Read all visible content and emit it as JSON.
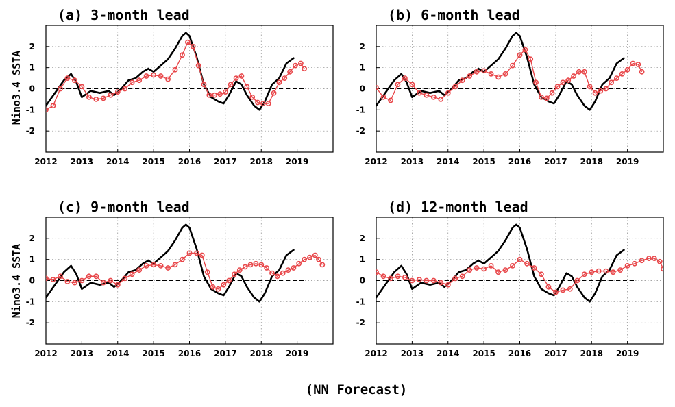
{
  "footer": "(NN Forecast)",
  "colors": {
    "observed": "#000000",
    "forecast": "#e8474a",
    "grid": "#888888"
  },
  "chart_data": [
    {
      "type": "line",
      "title": "(a) 3-month lead",
      "ylabel": "Nino3.4 SSTA",
      "xlim": [
        2012,
        2020
      ],
      "ylim": [
        -3,
        3
      ],
      "xticks": [
        "2012",
        "2013",
        "2014",
        "2015",
        "2016",
        "2017",
        "2018",
        "2019"
      ],
      "yticks": [
        "-2",
        "-1",
        "0",
        "1",
        "2"
      ],
      "grid": true,
      "series": [
        {
          "style": "solid",
          "x": [
            2012.0,
            2012.25,
            2012.5,
            2012.7,
            2012.85,
            2013.0,
            2013.25,
            2013.5,
            2013.75,
            2013.9,
            2014.1,
            2014.3,
            2014.5,
            2014.7,
            2014.85,
            2015.0,
            2015.2,
            2015.4,
            2015.6,
            2015.8,
            2015.9,
            2016.0,
            2016.2,
            2016.4,
            2016.6,
            2016.8,
            2016.95,
            2017.1,
            2017.3,
            2017.45,
            2017.6,
            2017.8,
            2017.95,
            2018.1,
            2018.3,
            2018.5,
            2018.7,
            2018.9
          ],
          "y": [
            -0.8,
            -0.2,
            0.4,
            0.7,
            0.3,
            -0.4,
            -0.1,
            -0.2,
            -0.1,
            -0.3,
            0.0,
            0.4,
            0.5,
            0.8,
            0.95,
            0.8,
            1.1,
            1.4,
            1.9,
            2.5,
            2.65,
            2.5,
            1.5,
            0.2,
            -0.4,
            -0.6,
            -0.7,
            -0.3,
            0.35,
            0.2,
            -0.3,
            -0.8,
            -1.0,
            -0.6,
            0.2,
            0.5,
            1.2,
            1.45
          ]
        },
        {
          "style": "markers",
          "x": [
            2012.0,
            2012.2,
            2012.4,
            2012.6,
            2012.8,
            2013.0,
            2013.2,
            2013.4,
            2013.6,
            2013.8,
            2014.0,
            2014.2,
            2014.4,
            2014.6,
            2014.8,
            2015.0,
            2015.2,
            2015.4,
            2015.6,
            2015.8,
            2015.95,
            2016.1,
            2016.25,
            2016.4,
            2016.55,
            2016.7,
            2016.85,
            2017.0,
            2017.15,
            2017.3,
            2017.45,
            2017.6,
            2017.75,
            2017.9,
            2018.05,
            2018.2,
            2018.35,
            2018.5,
            2018.65,
            2018.8,
            2018.95,
            2019.1,
            2019.2
          ],
          "y": [
            -1.0,
            -0.8,
            0.0,
            0.5,
            0.4,
            0.1,
            -0.4,
            -0.5,
            -0.45,
            -0.3,
            -0.15,
            0.0,
            0.3,
            0.4,
            0.6,
            0.65,
            0.6,
            0.45,
            0.9,
            1.6,
            2.2,
            2.0,
            1.1,
            0.2,
            -0.3,
            -0.3,
            -0.25,
            -0.15,
            0.2,
            0.5,
            0.6,
            0.1,
            -0.4,
            -0.65,
            -0.7,
            -0.7,
            -0.2,
            0.3,
            0.5,
            0.8,
            1.1,
            1.2,
            0.95
          ]
        }
      ]
    },
    {
      "type": "line",
      "title": "(b) 6-month lead",
      "ylabel": "",
      "xlim": [
        2012,
        2020
      ],
      "ylim": [
        -3,
        3
      ],
      "xticks": [
        "2012",
        "2013",
        "2014",
        "2015",
        "2016",
        "2017",
        "2018",
        "2019"
      ],
      "yticks": [
        "-2",
        "-1",
        "0",
        "1",
        "2"
      ],
      "grid": true,
      "series": [
        {
          "style": "solid",
          "x": [
            2012.0,
            2012.25,
            2012.5,
            2012.7,
            2012.85,
            2013.0,
            2013.25,
            2013.5,
            2013.75,
            2013.9,
            2014.1,
            2014.3,
            2014.5,
            2014.7,
            2014.85,
            2015.0,
            2015.2,
            2015.4,
            2015.6,
            2015.8,
            2015.9,
            2016.0,
            2016.2,
            2016.4,
            2016.6,
            2016.8,
            2016.95,
            2017.1,
            2017.3,
            2017.45,
            2017.6,
            2017.8,
            2017.95,
            2018.1,
            2018.3,
            2018.5,
            2018.7,
            2018.9
          ],
          "y": [
            -0.8,
            -0.2,
            0.4,
            0.7,
            0.3,
            -0.4,
            -0.1,
            -0.2,
            -0.1,
            -0.3,
            0.0,
            0.4,
            0.5,
            0.8,
            0.95,
            0.8,
            1.1,
            1.4,
            1.9,
            2.5,
            2.65,
            2.5,
            1.5,
            0.2,
            -0.4,
            -0.6,
            -0.7,
            -0.3,
            0.35,
            0.2,
            -0.3,
            -0.8,
            -1.0,
            -0.6,
            0.2,
            0.5,
            1.2,
            1.45
          ]
        },
        {
          "style": "markers",
          "x": [
            2012.0,
            2012.2,
            2012.4,
            2012.6,
            2012.8,
            2013.0,
            2013.2,
            2013.4,
            2013.6,
            2013.8,
            2014.0,
            2014.2,
            2014.4,
            2014.6,
            2014.8,
            2015.0,
            2015.2,
            2015.4,
            2015.6,
            2015.8,
            2016.0,
            2016.15,
            2016.3,
            2016.45,
            2016.6,
            2016.75,
            2016.9,
            2017.05,
            2017.2,
            2017.35,
            2017.5,
            2017.65,
            2017.8,
            2017.95,
            2018.1,
            2018.25,
            2018.4,
            2018.55,
            2018.7,
            2018.85,
            2019.0,
            2019.15,
            2019.3,
            2019.4
          ],
          "y": [
            0.05,
            -0.4,
            -0.55,
            0.2,
            0.5,
            0.2,
            -0.2,
            -0.3,
            -0.4,
            -0.5,
            -0.2,
            0.1,
            0.4,
            0.6,
            0.8,
            0.85,
            0.7,
            0.55,
            0.7,
            1.1,
            1.6,
            1.85,
            1.4,
            0.3,
            -0.4,
            -0.45,
            -0.2,
            0.1,
            0.3,
            0.4,
            0.6,
            0.8,
            0.8,
            0.1,
            -0.2,
            -0.1,
            0.0,
            0.3,
            0.5,
            0.7,
            0.9,
            1.2,
            1.15,
            0.8
          ]
        }
      ]
    },
    {
      "type": "line",
      "title": "(c) 9-month lead",
      "ylabel": "Nino3.4 SSTA",
      "xlim": [
        2012,
        2020
      ],
      "ylim": [
        -3,
        3
      ],
      "xticks": [
        "2012",
        "2013",
        "2014",
        "2015",
        "2016",
        "2017",
        "2018",
        "2019"
      ],
      "yticks": [
        "-2",
        "-1",
        "0",
        "1",
        "2"
      ],
      "grid": true,
      "series": [
        {
          "style": "solid",
          "x": [
            2012.0,
            2012.25,
            2012.5,
            2012.7,
            2012.85,
            2013.0,
            2013.25,
            2013.5,
            2013.75,
            2013.9,
            2014.1,
            2014.3,
            2014.5,
            2014.7,
            2014.85,
            2015.0,
            2015.2,
            2015.4,
            2015.6,
            2015.8,
            2015.9,
            2016.0,
            2016.2,
            2016.4,
            2016.6,
            2016.8,
            2016.95,
            2017.1,
            2017.3,
            2017.45,
            2017.6,
            2017.8,
            2017.95,
            2018.1,
            2018.3,
            2018.5,
            2018.7,
            2018.9
          ],
          "y": [
            -0.8,
            -0.2,
            0.4,
            0.7,
            0.3,
            -0.4,
            -0.1,
            -0.2,
            -0.1,
            -0.3,
            0.0,
            0.4,
            0.5,
            0.8,
            0.95,
            0.8,
            1.1,
            1.4,
            1.9,
            2.5,
            2.65,
            2.5,
            1.5,
            0.2,
            -0.4,
            -0.6,
            -0.7,
            -0.3,
            0.35,
            0.2,
            -0.3,
            -0.8,
            -1.0,
            -0.6,
            0.2,
            0.5,
            1.2,
            1.45
          ]
        },
        {
          "style": "markers",
          "x": [
            2012.0,
            2012.2,
            2012.4,
            2012.6,
            2012.8,
            2013.0,
            2013.2,
            2013.4,
            2013.6,
            2013.8,
            2014.0,
            2014.2,
            2014.4,
            2014.6,
            2014.8,
            2015.0,
            2015.2,
            2015.4,
            2015.6,
            2015.8,
            2016.0,
            2016.2,
            2016.35,
            2016.5,
            2016.65,
            2016.8,
            2016.95,
            2017.1,
            2017.25,
            2017.4,
            2017.55,
            2017.7,
            2017.85,
            2018.0,
            2018.15,
            2018.3,
            2018.45,
            2018.6,
            2018.75,
            2018.9,
            2019.05,
            2019.2,
            2019.35,
            2019.5,
            2019.6,
            2019.7
          ],
          "y": [
            0.1,
            0.05,
            0.2,
            -0.05,
            -0.1,
            0.0,
            0.2,
            0.2,
            -0.1,
            0.0,
            -0.2,
            0.1,
            0.3,
            0.5,
            0.7,
            0.75,
            0.7,
            0.6,
            0.75,
            1.0,
            1.3,
            1.3,
            1.2,
            0.4,
            -0.3,
            -0.4,
            -0.2,
            0.0,
            0.3,
            0.5,
            0.65,
            0.75,
            0.8,
            0.75,
            0.6,
            0.35,
            0.2,
            0.35,
            0.5,
            0.6,
            0.8,
            1.0,
            1.1,
            1.2,
            1.0,
            0.75
          ]
        }
      ]
    },
    {
      "type": "line",
      "title": "(d) 12-month lead",
      "ylabel": "",
      "xlim": [
        2012,
        2020
      ],
      "ylim": [
        -3,
        3
      ],
      "xticks": [
        "2012",
        "2013",
        "2014",
        "2015",
        "2016",
        "2017",
        "2018",
        "2019"
      ],
      "yticks": [
        "-2",
        "-1",
        "0",
        "1",
        "2"
      ],
      "grid": true,
      "series": [
        {
          "style": "solid",
          "x": [
            2012.0,
            2012.25,
            2012.5,
            2012.7,
            2012.85,
            2013.0,
            2013.25,
            2013.5,
            2013.75,
            2013.9,
            2014.1,
            2014.3,
            2014.5,
            2014.7,
            2014.85,
            2015.0,
            2015.2,
            2015.4,
            2015.6,
            2015.8,
            2015.9,
            2016.0,
            2016.2,
            2016.4,
            2016.6,
            2016.8,
            2016.95,
            2017.1,
            2017.3,
            2017.45,
            2017.6,
            2017.8,
            2017.95,
            2018.1,
            2018.3,
            2018.5,
            2018.7,
            2018.9
          ],
          "y": [
            -0.8,
            -0.2,
            0.4,
            0.7,
            0.3,
            -0.4,
            -0.1,
            -0.2,
            -0.1,
            -0.3,
            0.0,
            0.4,
            0.5,
            0.8,
            0.95,
            0.8,
            1.1,
            1.4,
            1.9,
            2.5,
            2.65,
            2.5,
            1.5,
            0.2,
            -0.4,
            -0.6,
            -0.7,
            -0.3,
            0.35,
            0.2,
            -0.3,
            -0.8,
            -1.0,
            -0.6,
            0.2,
            0.5,
            1.2,
            1.45
          ]
        },
        {
          "style": "markers",
          "x": [
            2012.0,
            2012.2,
            2012.4,
            2012.6,
            2012.8,
            2013.0,
            2013.2,
            2013.4,
            2013.6,
            2013.8,
            2014.0,
            2014.2,
            2014.4,
            2014.6,
            2014.8,
            2015.0,
            2015.2,
            2015.4,
            2015.6,
            2015.8,
            2016.0,
            2016.2,
            2016.4,
            2016.6,
            2016.8,
            2017.0,
            2017.2,
            2017.4,
            2017.6,
            2017.8,
            2018.0,
            2018.2,
            2018.4,
            2018.6,
            2018.8,
            2019.0,
            2019.2,
            2019.4,
            2019.6,
            2019.75,
            2019.9,
            2020.0
          ],
          "y": [
            0.4,
            0.2,
            0.1,
            0.2,
            0.15,
            0.0,
            0.05,
            0.0,
            0.0,
            -0.1,
            -0.2,
            0.1,
            0.2,
            0.5,
            0.6,
            0.55,
            0.7,
            0.4,
            0.5,
            0.7,
            1.0,
            0.8,
            0.6,
            0.3,
            -0.3,
            -0.55,
            -0.45,
            -0.4,
            0.0,
            0.3,
            0.4,
            0.45,
            0.45,
            0.4,
            0.5,
            0.7,
            0.8,
            0.95,
            1.05,
            1.05,
            0.9,
            0.55
          ]
        }
      ]
    }
  ]
}
